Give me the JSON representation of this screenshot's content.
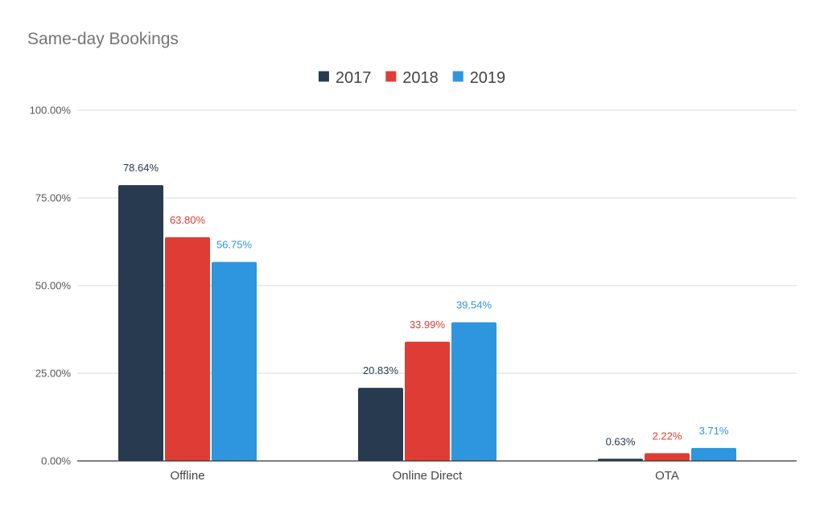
{
  "chart_data": {
    "type": "bar",
    "title": "Same-day Bookings",
    "xlabel": "",
    "ylabel": "",
    "categories": [
      "Offline",
      "Online Direct",
      "OTA"
    ],
    "series": [
      {
        "name": "2017",
        "color": "#283a50",
        "values": [
          78.64,
          20.83,
          0.63
        ],
        "labels": [
          "78.64%",
          "20.83%",
          "0.63%"
        ]
      },
      {
        "name": "2018",
        "color": "#e03c36",
        "values": [
          63.8,
          33.99,
          2.22
        ],
        "labels": [
          "63.80%",
          "33.99%",
          "2.22%"
        ]
      },
      {
        "name": "2019",
        "color": "#2e96df",
        "values": [
          56.75,
          39.54,
          3.71
        ],
        "labels": [
          "56.75%",
          "39.54%",
          "3.71%"
        ]
      }
    ],
    "ylim": [
      0,
      100
    ],
    "yticks": [
      {
        "value": 0,
        "label": "0.00%"
      },
      {
        "value": 25,
        "label": "25.00%"
      },
      {
        "value": 50,
        "label": "50.00%"
      },
      {
        "value": 75,
        "label": "75.00%"
      },
      {
        "value": 100,
        "label": "100.00%"
      }
    ],
    "grid": true,
    "legend_position": "top-center"
  }
}
